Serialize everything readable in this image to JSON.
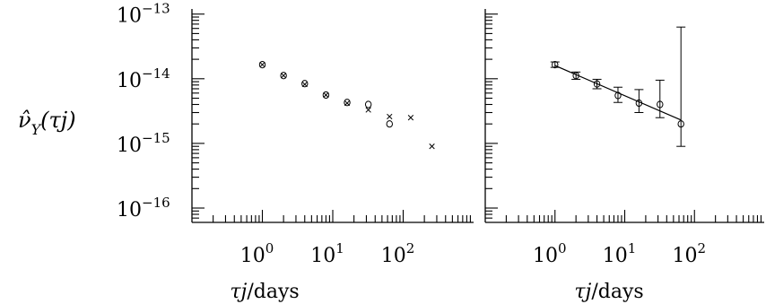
{
  "ylabel": "ν̂",
  "ylabel_sub": "Y",
  "ylabel_arg": "(τj)",
  "chart_data": [
    {
      "type": "scatter",
      "panel": "left",
      "xlabel_sym": "τj",
      "xlabel_unit": "/days",
      "xscale": "log",
      "yscale": "log",
      "xlim": [
        0.1,
        1000
      ],
      "ylim": [
        6e-17,
        1.2e-13
      ],
      "x_ticks": [
        {
          "value": 1,
          "base": "10",
          "exp": "0"
        },
        {
          "value": 10,
          "base": "10",
          "exp": "1"
        },
        {
          "value": 100,
          "base": "10",
          "exp": "2"
        }
      ],
      "y_ticks": [
        {
          "value": 1e-13,
          "base": "10",
          "exp": "−13"
        },
        {
          "value": 1e-14,
          "base": "10",
          "exp": "−14"
        },
        {
          "value": 1e-15,
          "base": "10",
          "exp": "−15"
        },
        {
          "value": 1e-16,
          "base": "10",
          "exp": "−16"
        }
      ],
      "series": [
        {
          "marker": "circle",
          "x": [
            1,
            2,
            4,
            8,
            16,
            32,
            64
          ],
          "y": [
            1.65e-14,
            1.12e-14,
            8.4e-15,
            5.6e-15,
            4.3e-15,
            4e-15,
            2e-15
          ]
        },
        {
          "marker": "x",
          "x": [
            1,
            2,
            4,
            8,
            16,
            32,
            64,
            128,
            256
          ],
          "y": [
            1.65e-14,
            1.12e-14,
            8.2e-15,
            5.6e-15,
            4.2e-15,
            3.3e-15,
            2.6e-15,
            2.5e-15,
            9e-16
          ]
        }
      ]
    },
    {
      "type": "scatter",
      "panel": "right",
      "xlabel_sym": "τj",
      "xlabel_unit": "/days",
      "xscale": "log",
      "yscale": "log",
      "xlim": [
        0.1,
        1000
      ],
      "ylim": [
        6e-17,
        1.2e-13
      ],
      "x_ticks": [
        {
          "value": 1,
          "base": "10",
          "exp": "0"
        },
        {
          "value": 10,
          "base": "10",
          "exp": "1"
        },
        {
          "value": 100,
          "base": "10",
          "exp": "2"
        }
      ],
      "series": [
        {
          "marker": "circle",
          "x": [
            1,
            2,
            4,
            8,
            16,
            32,
            64
          ],
          "y": [
            1.65e-14,
            1.12e-14,
            8.3e-15,
            5.5e-15,
            4.2e-15,
            4e-15,
            2e-15
          ],
          "err_low": [
            1.5e-14,
            9.8e-15,
            7e-15,
            4.3e-15,
            3e-15,
            2.5e-15,
            9e-16
          ],
          "err_high": [
            1.82e-14,
            1.27e-14,
            9.8e-15,
            7.4e-15,
            6.8e-15,
            9.5e-15,
            6.3e-14
          ]
        }
      ],
      "fit_line": {
        "x": [
          1,
          64
        ],
        "y": [
          1.6e-14,
          2.3e-15
        ]
      }
    }
  ]
}
